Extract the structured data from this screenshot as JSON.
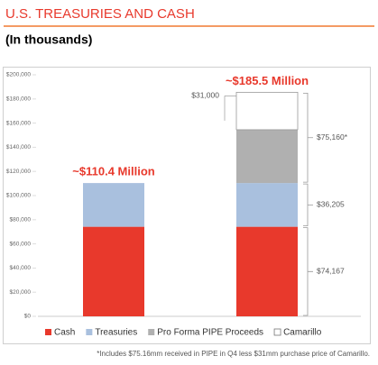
{
  "chart_data": {
    "type": "stacked-bar",
    "title": "U.S. TREASURIES AND CASH",
    "subtitle": "(In thousands)",
    "categories": [
      null,
      null
    ],
    "series": [
      {
        "name": "Cash",
        "color": "#e8392c",
        "values": [
          74167,
          74167
        ]
      },
      {
        "name": "Treasuries",
        "color": "#a9c0de",
        "values": [
          36205,
          36205
        ]
      },
      {
        "name": "Pro Forma PIPE Proceeds",
        "color": "#b0b0b0",
        "values": [
          null,
          44160
        ]
      },
      {
        "name": "Camarillo",
        "color": "#ffffff",
        "values": [
          null,
          31000
        ],
        "value_labels": [
          null,
          "$31,000"
        ]
      }
    ],
    "total_labels": [
      "~$110.4 Million",
      "~$185.5 Million"
    ],
    "brackets": [
      {
        "value": 74167,
        "label": "$74,167"
      },
      {
        "value": 36205,
        "label": "$36,205"
      },
      {
        "value": 75160,
        "label": "$75,160*"
      }
    ],
    "ylim": [
      0,
      200000
    ],
    "yticks": [
      {
        "value": 0,
        "label": "$0"
      },
      {
        "value": 20000,
        "label": "$20,000"
      },
      {
        "value": 40000,
        "label": "$40,000"
      },
      {
        "value": 60000,
        "label": "$60,000"
      },
      {
        "value": 80000,
        "label": "$80,000"
      },
      {
        "value": 100000,
        "label": "$100,000"
      },
      {
        "value": 120000,
        "label": "$120,000"
      },
      {
        "value": 140000,
        "label": "$140,000"
      },
      {
        "value": 160000,
        "label": "$160,000"
      },
      {
        "value": 180000,
        "label": "$180,000"
      },
      {
        "value": 200000,
        "label": "$200,000"
      }
    ],
    "legend": "bottom",
    "footnote": "*Includes $75.16mm received in PIPE in Q4 less $31mm purchase price of Camarillo."
  }
}
